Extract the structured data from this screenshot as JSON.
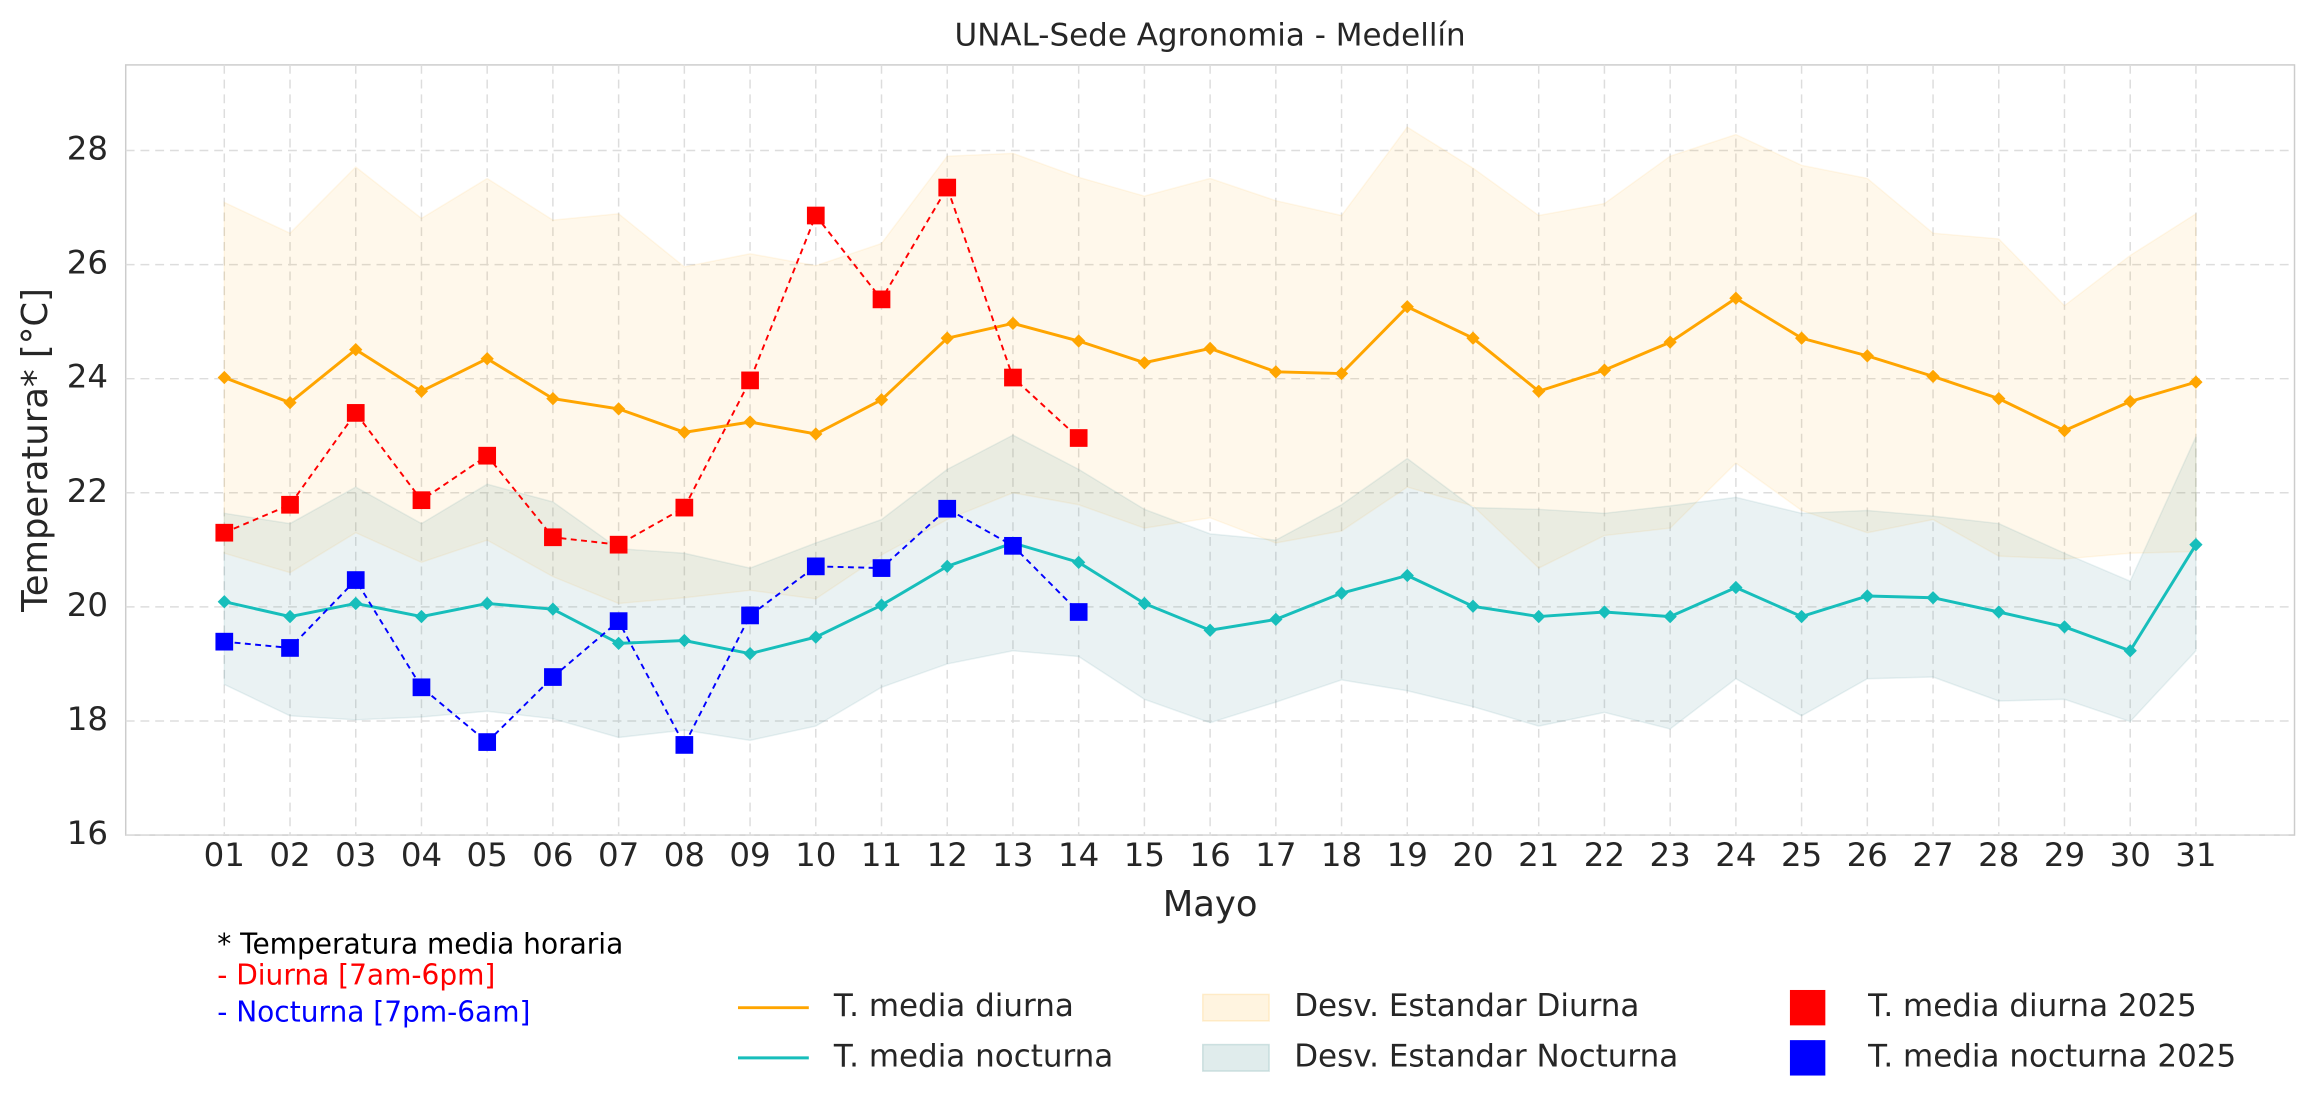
{
  "chart_data": {
    "type": "line",
    "title": "UNAL-Sede Agronomia - Medellín",
    "xlabel": "Mayo",
    "ylabel": "Temperatura* [°C]",
    "categories": [
      "01",
      "02",
      "03",
      "04",
      "05",
      "06",
      "07",
      "08",
      "09",
      "10",
      "11",
      "12",
      "13",
      "14",
      "15",
      "16",
      "17",
      "18",
      "19",
      "20",
      "21",
      "22",
      "23",
      "24",
      "25",
      "26",
      "27",
      "28",
      "29",
      "30",
      "31"
    ],
    "ylim": [
      16,
      29.5
    ],
    "yticks": [
      16,
      18,
      20,
      22,
      24,
      26,
      28
    ],
    "grid": true,
    "bands": [
      {
        "name": "Desv. Estandar Diurna",
        "color": "#ffa500",
        "alpha": 0.08,
        "lower": [
          20.94,
          20.6,
          21.3,
          20.78,
          21.17,
          20.53,
          20.06,
          20.16,
          20.29,
          20.14,
          20.91,
          21.53,
          22.0,
          21.79,
          21.38,
          21.56,
          21.12,
          21.33,
          22.1,
          21.77,
          20.68,
          21.25,
          21.38,
          22.52,
          21.69,
          21.3,
          21.53,
          20.89,
          20.84,
          20.94,
          20.97
        ],
        "upper": [
          27.09,
          26.55,
          27.71,
          26.81,
          27.51,
          26.78,
          26.89,
          25.96,
          26.19,
          25.98,
          26.37,
          27.9,
          27.95,
          27.53,
          27.2,
          27.51,
          27.12,
          26.86,
          28.41,
          27.69,
          26.86,
          27.07,
          27.9,
          28.28,
          27.74,
          27.51,
          26.55,
          26.45,
          25.28,
          26.16,
          26.89
        ]
      },
      {
        "name": "Desv. Estandar Nocturna",
        "color": "#5f9ea0",
        "alpha": 0.13,
        "lower": [
          18.64,
          18.09,
          18.02,
          18.07,
          18.17,
          18.04,
          17.71,
          17.84,
          17.66,
          17.91,
          18.59,
          19.0,
          19.23,
          19.13,
          18.38,
          17.97,
          18.33,
          18.72,
          18.53,
          18.25,
          17.91,
          18.15,
          17.86,
          18.74,
          18.09,
          18.74,
          18.77,
          18.35,
          18.38,
          17.99,
          19.23
        ],
        "upper": [
          21.64,
          21.46,
          22.1,
          21.46,
          22.15,
          21.84,
          21.02,
          20.94,
          20.68,
          21.12,
          21.53,
          22.41,
          23.01,
          22.41,
          21.71,
          21.28,
          21.17,
          21.79,
          22.6,
          21.74,
          21.71,
          21.64,
          21.77,
          21.92,
          21.64,
          21.69,
          21.59,
          21.46,
          20.94,
          20.45,
          22.98
        ]
      }
    ],
    "series": [
      {
        "name": "T. media diurna",
        "color": "#ffa500",
        "dashed": false,
        "marker": "diamond",
        "values": [
          24.02,
          23.58,
          24.51,
          23.78,
          24.35,
          23.65,
          23.47,
          23.06,
          23.24,
          23.03,
          23.63,
          24.71,
          24.97,
          24.66,
          24.28,
          24.53,
          24.12,
          24.09,
          25.26,
          24.71,
          23.78,
          24.15,
          24.64,
          25.41,
          24.71,
          24.4,
          24.04,
          23.65,
          23.09,
          23.6,
          23.94
        ]
      },
      {
        "name": "T. media nocturna",
        "color": "#17bebb",
        "dashed": false,
        "marker": "diamond",
        "values": [
          20.09,
          19.83,
          20.06,
          19.83,
          20.06,
          19.96,
          19.36,
          19.41,
          19.18,
          19.47,
          20.03,
          20.71,
          21.12,
          20.78,
          20.06,
          19.59,
          19.78,
          20.24,
          20.55,
          20.01,
          19.83,
          19.91,
          19.83,
          20.34,
          19.83,
          20.19,
          20.16,
          19.91,
          19.65,
          19.23,
          21.09
        ]
      },
      {
        "name": "T. media diurna 2025",
        "color": "#ff0000",
        "dashed": true,
        "marker": "square",
        "values": [
          21.3,
          21.79,
          23.4,
          21.87,
          22.65,
          21.22,
          21.09,
          21.74,
          23.97,
          26.86,
          25.39,
          27.35,
          24.02,
          22.96,
          null,
          null,
          null,
          null,
          null,
          null,
          null,
          null,
          null,
          null,
          null,
          null,
          null,
          null,
          null,
          null,
          null
        ]
      },
      {
        "name": "T. media nocturna 2025",
        "color": "#0000ff",
        "dashed": true,
        "marker": "square",
        "values": [
          19.39,
          19.28,
          20.47,
          18.59,
          17.63,
          18.77,
          19.75,
          17.58,
          19.85,
          20.71,
          20.68,
          21.72,
          21.07,
          19.91,
          null,
          null,
          null,
          null,
          null,
          null,
          null,
          null,
          null,
          null,
          null,
          null,
          null,
          null,
          null,
          null,
          null
        ]
      }
    ],
    "notes": [
      {
        "text": "* Temperatura media horaria",
        "color": "#000000"
      },
      {
        "text": "- Diurna [7am-6pm]",
        "color": "#ff0000"
      },
      {
        "text": "- Nocturna [7pm-6am]",
        "color": "#0000ff"
      }
    ]
  }
}
